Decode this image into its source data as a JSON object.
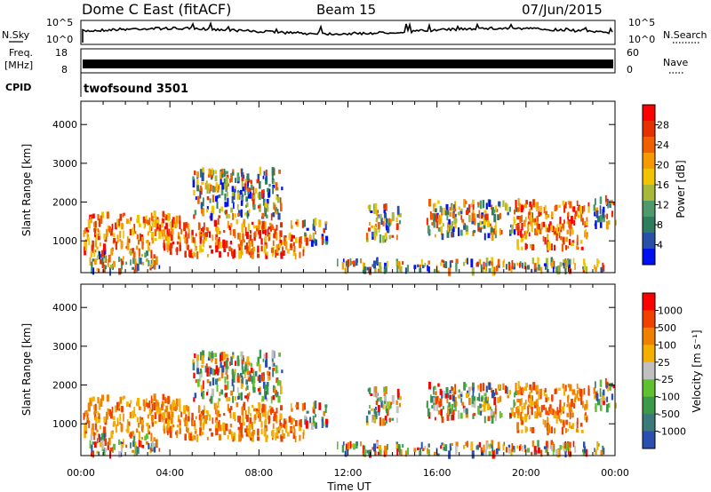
{
  "header": {
    "title": "Dome C East (fitACF)",
    "beam": "Beam 15",
    "date": "07/Jun/2015"
  },
  "status_panels": {
    "nsky_label": "N.Sky",
    "nsearch_label": "N.Search",
    "noise_left_ticks": [
      "10^5",
      "10^0"
    ],
    "noise_right_ticks": [
      "10^5",
      "10^0"
    ],
    "freq_label": "Freq.",
    "freq_unit": "[MHz]",
    "freq_ticks": [
      "18",
      "8"
    ],
    "nave_label": "Nave",
    "nave_ticks": [
      "60",
      "0"
    ],
    "cpid_label": "CPID",
    "cpid_value": "twofsound 3501"
  },
  "colors": {
    "power_scale": [
      "#0010f0",
      "#2a4fa8",
      "#2e7d5e",
      "#4e9a6a",
      "#a8b838",
      "#f0c400",
      "#f59a00",
      "#f06000",
      "#e63000",
      "#ff0000"
    ],
    "velocity_scale": [
      "#ff0000",
      "#f04000",
      "#f08000",
      "#f4b000",
      "#c0c0c0",
      "#60c030",
      "#3a9a4a",
      "#3a7a7a",
      "#2a4fb0"
    ]
  },
  "chart_data": [
    {
      "type": "heatmap",
      "title": "",
      "xlabel": "Time UT",
      "ylabel": "Slant Range [km]",
      "x_ticks": [
        "00:00",
        "04:00",
        "08:00",
        "12:00",
        "16:00",
        "20:00",
        "00:00"
      ],
      "y_ticks": [
        "1000",
        "2000",
        "3000",
        "4000"
      ],
      "xlim_hours": [
        0,
        24
      ],
      "ylim_km": [
        180,
        4600
      ],
      "colorbar_label": "Power [dB]",
      "colorbar_ticks": [
        "4",
        "8",
        "12",
        "16",
        "20",
        "24",
        "28"
      ],
      "colorbar_range": [
        0,
        32
      ]
    },
    {
      "type": "heatmap",
      "title": "",
      "xlabel": "Time UT",
      "ylabel": "Slant Range [km]",
      "x_ticks": [
        "00:00",
        "04:00",
        "08:00",
        "12:00",
        "16:00",
        "20:00",
        "00:00"
      ],
      "y_ticks": [
        "1000",
        "2000",
        "3000",
        "4000"
      ],
      "xlim_hours": [
        0,
        24
      ],
      "ylim_km": [
        180,
        4600
      ],
      "colorbar_label": "Velocity [m s⁻¹]",
      "colorbar_ticks": [
        "1000",
        "500",
        "100",
        "25",
        "-25",
        "-100",
        "-500",
        "-1000"
      ]
    }
  ]
}
